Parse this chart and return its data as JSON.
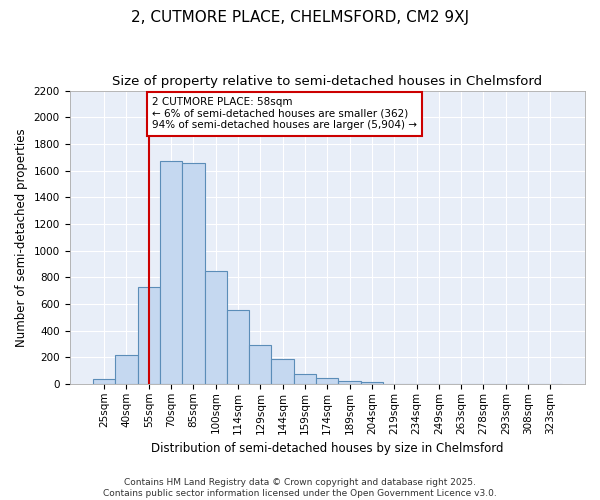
{
  "title": "2, CUTMORE PLACE, CHELMSFORD, CM2 9XJ",
  "subtitle": "Size of property relative to semi-detached houses in Chelmsford",
  "xlabel": "Distribution of semi-detached houses by size in Chelmsford",
  "ylabel": "Number of semi-detached properties",
  "categories": [
    "25sqm",
    "40sqm",
    "55sqm",
    "70sqm",
    "85sqm",
    "100sqm",
    "114sqm",
    "129sqm",
    "144sqm",
    "159sqm",
    "174sqm",
    "189sqm",
    "204sqm",
    "219sqm",
    "234sqm",
    "249sqm",
    "263sqm",
    "278sqm",
    "293sqm",
    "308sqm",
    "323sqm"
  ],
  "values": [
    40,
    220,
    730,
    1670,
    1660,
    845,
    555,
    295,
    185,
    75,
    45,
    25,
    15,
    0,
    0,
    0,
    0,
    0,
    0,
    0,
    0
  ],
  "bar_color": "#c5d8f0",
  "bar_edge_color": "#5b8db8",
  "red_line_index": 2,
  "annotation_text": "2 CUTMORE PLACE: 58sqm\n← 6% of semi-detached houses are smaller (362)\n94% of semi-detached houses are larger (5,904) →",
  "annotation_box_facecolor": "#ffffff",
  "annotation_box_edgecolor": "#cc0000",
  "ylim": [
    0,
    2200
  ],
  "yticks": [
    0,
    200,
    400,
    600,
    800,
    1000,
    1200,
    1400,
    1600,
    1800,
    2000,
    2200
  ],
  "plot_bg_color": "#e8eef8",
  "fig_bg_color": "#ffffff",
  "grid_color": "#ffffff",
  "footer": "Contains HM Land Registry data © Crown copyright and database right 2025.\nContains public sector information licensed under the Open Government Licence v3.0.",
  "title_fontsize": 11,
  "subtitle_fontsize": 9.5,
  "axis_label_fontsize": 8.5,
  "tick_fontsize": 7.5,
  "annotation_fontsize": 7.5,
  "footer_fontsize": 6.5
}
